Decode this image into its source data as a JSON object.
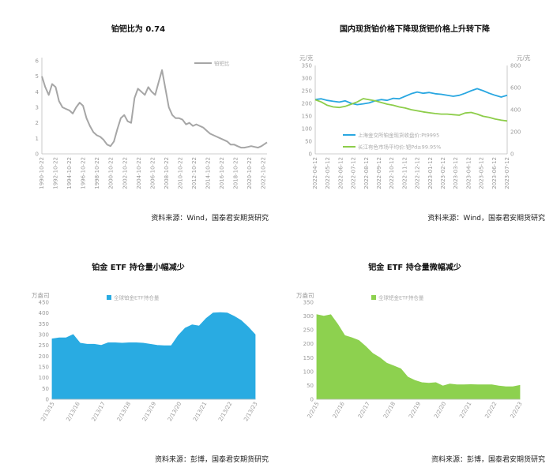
{
  "chart_data": [
    {
      "id": "c1",
      "type": "line",
      "title": "铂钯比为 0.74",
      "source": "资料来源：Wind，国泰君安期货研究",
      "ylim": [
        0,
        6
      ],
      "yticks": [
        "0",
        "1",
        "2",
        "3",
        "4",
        "5",
        "6"
      ],
      "xticks": [
        "1990-10-22",
        "1992-10-22",
        "1994-10-22",
        "1996-10-22",
        "1998-10-22",
        "2000-10-22",
        "2002-10-22",
        "2004-10-22",
        "2006-10-22",
        "2008-10-22",
        "2010-10-22",
        "2012-10-22",
        "2014-10-22",
        "2016-10-22",
        "2018-10-22",
        "2020-10-22",
        "2022-10-22"
      ],
      "grid": false,
      "legend_position": "top-right",
      "series": [
        {
          "name": "铂钯比",
          "color": "#a6a6a6",
          "x": [
            1990.8,
            1991.3,
            1991.8,
            1992.3,
            1992.8,
            1993.3,
            1993.8,
            1994.3,
            1994.8,
            1995.3,
            1995.8,
            1996.3,
            1996.8,
            1997.3,
            1997.8,
            1998.3,
            1998.8,
            1999.3,
            1999.8,
            2000.3,
            2000.8,
            2001.3,
            2001.8,
            2002.3,
            2002.8,
            2003.3,
            2003.8,
            2004.3,
            2004.8,
            2005.3,
            2005.8,
            2006.3,
            2006.8,
            2007.3,
            2007.8,
            2008.3,
            2008.8,
            2009.3,
            2009.8,
            2010.3,
            2010.8,
            2011.3,
            2011.8,
            2012.3,
            2012.8,
            2013.3,
            2013.8,
            2014.3,
            2014.8,
            2015.3,
            2015.8,
            2016.3,
            2016.8,
            2017.3,
            2017.8,
            2018.3,
            2018.8,
            2019.3,
            2019.8,
            2020.3,
            2020.8,
            2021.3,
            2021.8,
            2022.3,
            2022.8,
            2023.3,
            2023.6
          ],
          "y": [
            5.0,
            4.3,
            3.8,
            4.5,
            4.3,
            3.4,
            3.0,
            2.9,
            2.8,
            2.6,
            3.0,
            3.3,
            3.1,
            2.3,
            1.8,
            1.4,
            1.2,
            1.1,
            0.9,
            0.6,
            0.5,
            0.8,
            1.6,
            2.3,
            2.5,
            2.1,
            2.0,
            3.6,
            4.2,
            4.0,
            3.8,
            4.3,
            4.0,
            3.8,
            4.6,
            5.4,
            4.2,
            3.0,
            2.5,
            2.3,
            2.3,
            2.2,
            1.9,
            2.0,
            1.8,
            1.9,
            1.8,
            1.7,
            1.5,
            1.3,
            1.2,
            1.1,
            1.0,
            0.9,
            0.8,
            0.6,
            0.6,
            0.5,
            0.4,
            0.4,
            0.45,
            0.5,
            0.45,
            0.4,
            0.5,
            0.65,
            0.74
          ]
        }
      ]
    },
    {
      "id": "c2",
      "type": "line",
      "title": "国内现货铂价格下降现货钯价格上升转下降",
      "source": "资料来源：Wind，国泰君安期货研究",
      "ylabel_left": "元/克",
      "ylabel_right": "元/克",
      "ylim_left": [
        0,
        350
      ],
      "ylim_right": [
        0,
        800
      ],
      "yticks_left": [
        "0",
        "50",
        "100",
        "150",
        "200",
        "250",
        "300",
        "350"
      ],
      "yticks_right": [
        "0",
        "200",
        "400",
        "600",
        "800"
      ],
      "xticks": [
        "2022-04-12",
        "2022-05-12",
        "2022-06-12",
        "2022-07-12",
        "2022-08-12",
        "2022-09-12",
        "2022-10-12",
        "2022-11-12",
        "2022-12-12",
        "2023-01-12",
        "2023-02-12",
        "2023-03-12",
        "2023-04-12",
        "2023-05-12",
        "2023-06-12",
        "2023-07-12"
      ],
      "grid": false,
      "legend_position": "bottom-center",
      "series": [
        {
          "name": "上海金交所铂金现货收盘价:Pt9995",
          "axis": "left",
          "color": "#29a7e1",
          "x": [
            0,
            0.5,
            1,
            1.5,
            2,
            2.5,
            3,
            3.5,
            4,
            4.5,
            5,
            5.5,
            6,
            6.5,
            7,
            7.5,
            8,
            8.5,
            9,
            9.5,
            10,
            10.5,
            11,
            11.5,
            12,
            12.5,
            13,
            13.5,
            14,
            14.5,
            15,
            15.5,
            16
          ],
          "y": [
            215,
            218,
            212,
            208,
            205,
            210,
            200,
            195,
            198,
            202,
            210,
            215,
            212,
            220,
            218,
            228,
            238,
            245,
            240,
            243,
            238,
            236,
            232,
            228,
            232,
            240,
            250,
            258,
            250,
            240,
            232,
            225,
            232
          ]
        },
        {
          "name": "长江有色市场平均价:钯Pd≥99.95%",
          "axis": "right",
          "color": "#8dcd4a",
          "x": [
            0,
            0.5,
            1,
            1.5,
            2,
            2.5,
            3,
            3.5,
            4,
            4.5,
            5,
            5.5,
            6,
            6.5,
            7,
            7.5,
            8,
            8.5,
            9,
            9.5,
            10,
            10.5,
            11,
            11.5,
            12,
            12.5,
            13,
            13.5,
            14,
            14.5,
            15,
            15.5,
            16
          ],
          "y": [
            490,
            470,
            440,
            425,
            420,
            430,
            450,
            470,
            500,
            490,
            480,
            465,
            450,
            440,
            425,
            415,
            400,
            390,
            380,
            372,
            365,
            360,
            360,
            355,
            350,
            370,
            375,
            360,
            340,
            330,
            315,
            305,
            298
          ]
        }
      ]
    },
    {
      "id": "c3",
      "type": "area",
      "title": "铂金 ETF 持仓量小幅减少",
      "source": "资料来源：彭博，国泰君安期货研究",
      "ylabel": "万盎司",
      "ylim": [
        0,
        450
      ],
      "yticks": [
        "0",
        "50",
        "100",
        "150",
        "200",
        "250",
        "300",
        "350",
        "400",
        "450"
      ],
      "xticks": [
        "2/13/15",
        "2/13/16",
        "2/13/17",
        "2/13/18",
        "2/13/19",
        "2/13/20",
        "2/13/21",
        "2/13/22",
        "2/13/23"
      ],
      "grid": false,
      "legend_position": "top-left",
      "series": [
        {
          "name": "全球铂金ETF持仓量",
          "color": "#29abe2",
          "x": [
            0,
            0.3,
            0.6,
            0.9,
            1.2,
            1.5,
            1.8,
            2.1,
            2.4,
            2.7,
            3.0,
            3.3,
            3.6,
            3.9,
            4.2,
            4.5,
            4.8,
            5.1,
            5.4,
            5.7,
            6.0,
            6.3,
            6.6,
            6.9,
            7.2,
            7.5,
            7.8,
            8.1,
            8.4,
            8.7
          ],
          "y": [
            280,
            285,
            285,
            300,
            260,
            255,
            255,
            250,
            262,
            262,
            260,
            262,
            262,
            260,
            255,
            250,
            248,
            248,
            295,
            330,
            345,
            340,
            375,
            400,
            402,
            400,
            385,
            365,
            335,
            300
          ]
        }
      ]
    },
    {
      "id": "c4",
      "type": "area",
      "title": "钯金 ETF 持仓量微幅减少",
      "source": "资料来源：彭博，国泰君安期货研究",
      "ylabel": "万盎司",
      "ylim": [
        0,
        350
      ],
      "yticks": [
        "0",
        "50",
        "100",
        "150",
        "200",
        "250",
        "300",
        "350"
      ],
      "xticks": [
        "2/2/15",
        "2/2/16",
        "2/2/17",
        "2/2/18",
        "2/2/19",
        "2/2/20",
        "2/2/21",
        "2/2/22",
        "2/2/23"
      ],
      "grid": false,
      "legend_position": "top-left",
      "series": [
        {
          "name": "全球钯金ETF持仓量",
          "color": "#8dd14f",
          "x": [
            0,
            0.3,
            0.6,
            0.9,
            1.2,
            1.5,
            1.8,
            2.1,
            2.4,
            2.7,
            3.0,
            3.3,
            3.6,
            3.9,
            4.2,
            4.5,
            4.8,
            5.1,
            5.4,
            5.7,
            6.0,
            6.3,
            6.6,
            6.9,
            7.2,
            7.5,
            7.8,
            8.1,
            8.4,
            8.7
          ],
          "y": [
            305,
            300,
            305,
            270,
            230,
            222,
            212,
            190,
            165,
            150,
            130,
            120,
            110,
            80,
            68,
            60,
            58,
            60,
            48,
            55,
            52,
            52,
            53,
            52,
            52,
            52,
            48,
            45,
            45,
            50
          ]
        }
      ]
    }
  ]
}
